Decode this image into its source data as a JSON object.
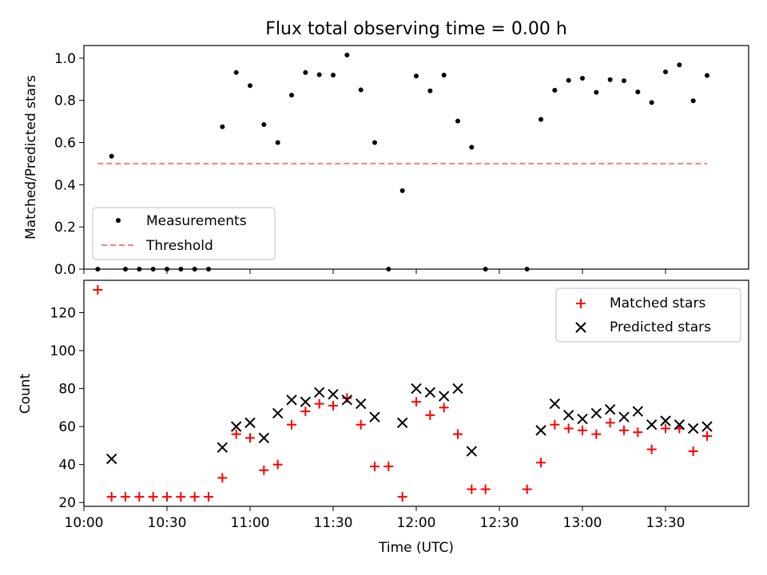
{
  "chart_data": [
    {
      "type": "scatter",
      "title": "Flux total observing time = 0.00 h",
      "xlabel": "",
      "ylabel": "Matched/Predicted stars",
      "xlim": [
        "10:00",
        "14:00"
      ],
      "ylim": [
        0,
        1.06
      ],
      "yticks": [
        "0.0",
        "0.2",
        "0.4",
        "0.6",
        "0.8",
        "1.0"
      ],
      "legend": {
        "placement": "lower-left",
        "entries": [
          "Measurements",
          "Threshold"
        ]
      },
      "threshold": {
        "name": "Threshold",
        "value": 0.5,
        "x_start": "10:05",
        "x_end": "13:45",
        "color": "#f08080"
      },
      "series": [
        {
          "name": "Measurements",
          "color": "#000000",
          "points": [
            [
              "10:05",
              0.0
            ],
            [
              "10:10",
              0.535
            ],
            [
              "10:15",
              0.0
            ],
            [
              "10:20",
              0.0
            ],
            [
              "10:25",
              0.0
            ],
            [
              "10:30",
              0.0
            ],
            [
              "10:35",
              0.0
            ],
            [
              "10:40",
              0.0
            ],
            [
              "10:45",
              0.0
            ],
            [
              "10:50",
              0.675
            ],
            [
              "10:55",
              0.932
            ],
            [
              "11:00",
              0.87
            ],
            [
              "11:05",
              0.685
            ],
            [
              "11:10",
              0.6
            ],
            [
              "11:15",
              0.825
            ],
            [
              "11:20",
              0.932
            ],
            [
              "11:25",
              0.922
            ],
            [
              "11:30",
              0.92
            ],
            [
              "11:35",
              1.015
            ],
            [
              "11:40",
              0.85
            ],
            [
              "11:45",
              0.6
            ],
            [
              "11:50",
              0.0
            ],
            [
              "11:55",
              0.372
            ],
            [
              "12:00",
              0.915
            ],
            [
              "12:05",
              0.845
            ],
            [
              "12:10",
              0.92
            ],
            [
              "12:15",
              0.702
            ],
            [
              "12:20",
              0.578
            ],
            [
              "12:25",
              0.0
            ],
            [
              "12:40",
              0.0
            ],
            [
              "12:45",
              0.71
            ],
            [
              "12:50",
              0.848
            ],
            [
              "12:55",
              0.895
            ],
            [
              "13:00",
              0.905
            ],
            [
              "13:05",
              0.838
            ],
            [
              "13:10",
              0.898
            ],
            [
              "13:15",
              0.893
            ],
            [
              "13:20",
              0.84
            ],
            [
              "13:25",
              0.79
            ],
            [
              "13:30",
              0.935
            ],
            [
              "13:35",
              0.968
            ],
            [
              "13:40",
              0.798
            ],
            [
              "13:45",
              0.918
            ]
          ]
        }
      ]
    },
    {
      "type": "scatter",
      "title": "",
      "xlabel": "Time (UTC)",
      "ylabel": "Count",
      "xlim": [
        "10:00",
        "14:00"
      ],
      "ylim": [
        18,
        137
      ],
      "yticks": [
        "20",
        "40",
        "60",
        "80",
        "100",
        "120"
      ],
      "xticks": [
        "10:00",
        "10:30",
        "11:00",
        "11:30",
        "12:00",
        "12:30",
        "13:00",
        "13:30"
      ],
      "legend": {
        "placement": "top-right",
        "entries": [
          "Matched stars",
          "Predicted stars"
        ]
      },
      "series": [
        {
          "name": "Matched stars",
          "marker": "plus",
          "color": "#ff0000",
          "points": [
            [
              "10:05",
              132
            ],
            [
              "10:10",
              23
            ],
            [
              "10:15",
              23
            ],
            [
              "10:20",
              23
            ],
            [
              "10:25",
              23
            ],
            [
              "10:30",
              23
            ],
            [
              "10:35",
              23
            ],
            [
              "10:40",
              23
            ],
            [
              "10:45",
              23
            ],
            [
              "10:50",
              33
            ],
            [
              "10:55",
              56
            ],
            [
              "11:00",
              54
            ],
            [
              "11:05",
              37
            ],
            [
              "11:10",
              40
            ],
            [
              "11:15",
              61
            ],
            [
              "11:20",
              68
            ],
            [
              "11:25",
              72
            ],
            [
              "11:30",
              71
            ],
            [
              "11:35",
              75
            ],
            [
              "11:40",
              61
            ],
            [
              "11:45",
              39
            ],
            [
              "11:50",
              39
            ],
            [
              "11:55",
              23
            ],
            [
              "12:00",
              73
            ],
            [
              "12:05",
              66
            ],
            [
              "12:10",
              70
            ],
            [
              "12:15",
              56
            ],
            [
              "12:20",
              27
            ],
            [
              "12:25",
              27
            ],
            [
              "12:40",
              27
            ],
            [
              "12:45",
              41
            ],
            [
              "12:50",
              61
            ],
            [
              "12:55",
              59
            ],
            [
              "13:00",
              58
            ],
            [
              "13:05",
              56
            ],
            [
              "13:10",
              62
            ],
            [
              "13:15",
              58
            ],
            [
              "13:20",
              57
            ],
            [
              "13:25",
              48
            ],
            [
              "13:30",
              59
            ],
            [
              "13:35",
              59
            ],
            [
              "13:40",
              47
            ],
            [
              "13:45",
              55
            ]
          ]
        },
        {
          "name": "Predicted stars",
          "marker": "x",
          "color": "#000000",
          "points": [
            [
              "10:10",
              43
            ],
            [
              "10:50",
              49
            ],
            [
              "10:55",
              60
            ],
            [
              "11:00",
              62
            ],
            [
              "11:05",
              54
            ],
            [
              "11:10",
              67
            ],
            [
              "11:15",
              74
            ],
            [
              "11:20",
              73
            ],
            [
              "11:25",
              78
            ],
            [
              "11:30",
              77
            ],
            [
              "11:35",
              74
            ],
            [
              "11:40",
              72
            ],
            [
              "11:45",
              65
            ],
            [
              "11:55",
              62
            ],
            [
              "12:00",
              80
            ],
            [
              "12:05",
              78
            ],
            [
              "12:10",
              76
            ],
            [
              "12:15",
              80
            ],
            [
              "12:20",
              47
            ],
            [
              "12:45",
              58
            ],
            [
              "12:50",
              72
            ],
            [
              "12:55",
              66
            ],
            [
              "13:00",
              64
            ],
            [
              "13:05",
              67
            ],
            [
              "13:10",
              69
            ],
            [
              "13:15",
              65
            ],
            [
              "13:20",
              68
            ],
            [
              "13:25",
              61
            ],
            [
              "13:30",
              63
            ],
            [
              "13:35",
              61
            ],
            [
              "13:40",
              59
            ],
            [
              "13:45",
              60
            ]
          ]
        }
      ]
    }
  ]
}
